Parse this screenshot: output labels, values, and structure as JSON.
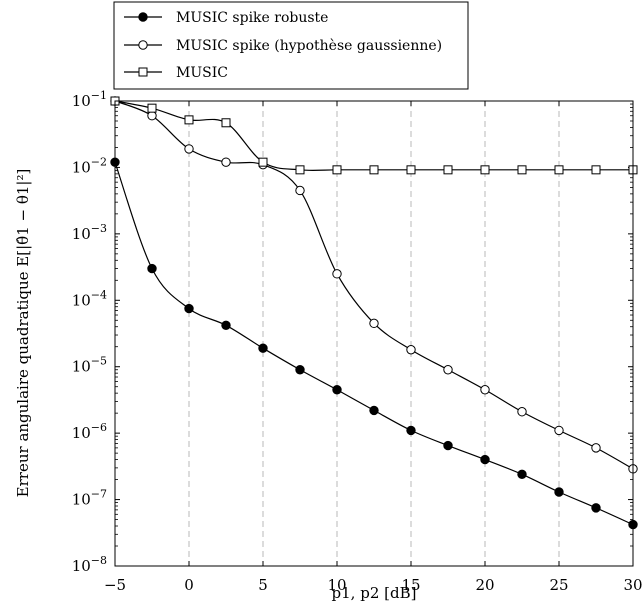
{
  "chart_data": {
    "type": "line",
    "xlabel": "p1, p2 [dB]",
    "ylabel": "Erreur angulaire quadratique E[|θ̂1 − θ1|²]",
    "xlim": [
      -5,
      30
    ],
    "ylim_log10": [
      -8,
      -1
    ],
    "yscale": "log",
    "x_ticks": [
      -5,
      0,
      5,
      10,
      15,
      20,
      25,
      30
    ],
    "y_ticks": [
      {
        "exp": -8,
        "label": "10−8"
      },
      {
        "exp": -7,
        "label": "10−7"
      },
      {
        "exp": -6,
        "label": "10−6"
      },
      {
        "exp": -5,
        "label": "10−5"
      },
      {
        "exp": -4,
        "label": "10−4"
      },
      {
        "exp": -3,
        "label": "10−3"
      },
      {
        "exp": -2,
        "label": "10−2"
      },
      {
        "exp": -1,
        "label": "10−1"
      }
    ],
    "grid": "vertical dashed",
    "legend_position": "top-left, outside",
    "series": [
      {
        "name": "MUSIC spike robuste",
        "marker": "filled-circle",
        "color": "#000000",
        "x": [
          -5,
          -2.5,
          0,
          2.5,
          5,
          7.5,
          10,
          12.5,
          15,
          17.5,
          20,
          22.5,
          25,
          27.5,
          30
        ],
        "y": [
          0.012,
          0.0003,
          7.5e-05,
          4.2e-05,
          1.9e-05,
          9e-06,
          4.5e-06,
          2.2e-06,
          1.1e-06,
          6.5e-07,
          4e-07,
          2.4e-07,
          1.3e-07,
          7.5e-08,
          4.2e-08
        ]
      },
      {
        "name": "MUSIC spike (hypothèse gaussienne)",
        "marker": "open-circle",
        "color": "#000000",
        "x": [
          -5,
          -2.5,
          0,
          2.5,
          5,
          7.5,
          10,
          12.5,
          15,
          17.5,
          20,
          22.5,
          25,
          27.5,
          30
        ],
        "y": [
          0.1,
          0.06,
          0.019,
          0.012,
          0.011,
          0.0045,
          0.00025,
          4.5e-05,
          1.8e-05,
          9e-06,
          4.5e-06,
          2.1e-06,
          1.1e-06,
          6e-07,
          2.9e-07
        ]
      },
      {
        "name": "MUSIC",
        "marker": "open-square",
        "color": "#000000",
        "x": [
          -5,
          -2.5,
          0,
          2.5,
          5,
          7.5,
          10,
          12.5,
          15,
          17.5,
          20,
          22.5,
          25,
          27.5,
          30
        ],
        "y": [
          0.1,
          0.078,
          0.052,
          0.047,
          0.012,
          0.0092,
          0.0092,
          0.0092,
          0.0092,
          0.0092,
          0.0092,
          0.0092,
          0.0092,
          0.0092,
          0.0092
        ]
      }
    ]
  }
}
